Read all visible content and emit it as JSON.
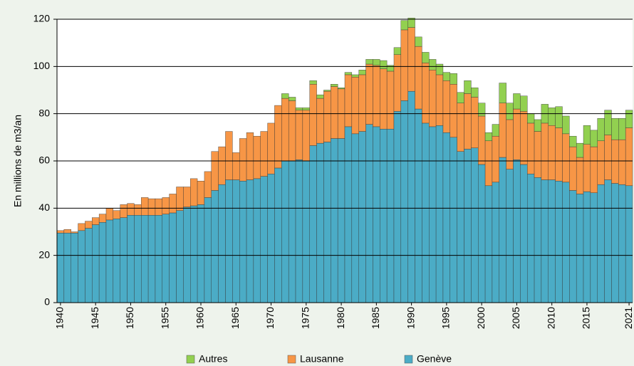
{
  "chart_data": {
    "type": "stacked_bar",
    "y_label": "En millions de m3/an",
    "categories": [
      "1940",
      null,
      null,
      null,
      null,
      "1945",
      null,
      null,
      null,
      null,
      "1950",
      null,
      null,
      null,
      null,
      "1955",
      null,
      null,
      null,
      null,
      "1960",
      null,
      null,
      null,
      null,
      "1965",
      null,
      null,
      null,
      null,
      "1970",
      null,
      null,
      null,
      null,
      "1975",
      null,
      null,
      null,
      null,
      "1980",
      null,
      null,
      null,
      null,
      "1985",
      null,
      null,
      null,
      null,
      "1990",
      null,
      null,
      null,
      null,
      "1995",
      null,
      null,
      null,
      null,
      "2000",
      null,
      null,
      null,
      null,
      "2005",
      null,
      null,
      null,
      null,
      "2010",
      null,
      null,
      null,
      null,
      "2015",
      null,
      null,
      null,
      null,
      null,
      "2021"
    ],
    "series": [
      {
        "name": "Genève",
        "color": "#4bacc6",
        "values": [
          29.5,
          29.5,
          29.5,
          30.5,
          31.5,
          33,
          34,
          35,
          35.5,
          36,
          37,
          37,
          37,
          37,
          37,
          37.5,
          38,
          39,
          40.5,
          41,
          41.5,
          44.5,
          47.5,
          50,
          52,
          52,
          51.5,
          52,
          52.5,
          53.5,
          54.5,
          57,
          60,
          60,
          60.5,
          60,
          66.5,
          67.5,
          68,
          69.5,
          69.5,
          74.5,
          71.5,
          72.5,
          75.5,
          74.5,
          73.5,
          73.5,
          81,
          85.5,
          89.5,
          82,
          76,
          74.5,
          75,
          72,
          70,
          64,
          65,
          65.5,
          58.5,
          49.5,
          51,
          61.5,
          56.5,
          60.5,
          58.5,
          54.5,
          53,
          52,
          52,
          51.5,
          51,
          47.5,
          46,
          47,
          46.5,
          50,
          52,
          50.5,
          50,
          49.5
        ]
      },
      {
        "name": "Lausanne",
        "color": "#f79646",
        "values": [
          1,
          1.5,
          0.5,
          3,
          3,
          3,
          3.5,
          5,
          3.5,
          5.5,
          5,
          4.5,
          7.5,
          7,
          7,
          7,
          8,
          10,
          8.5,
          11.5,
          10,
          11,
          16.5,
          16,
          20.5,
          11.5,
          18,
          20,
          18,
          19,
          21.5,
          26.5,
          26.5,
          25.5,
          21,
          21.5,
          26,
          19,
          21.5,
          22,
          21,
          22,
          24,
          24,
          25.5,
          26,
          25.5,
          24.5,
          24,
          30,
          27,
          26.5,
          25.5,
          24,
          21.5,
          22,
          22.5,
          20.5,
          23.5,
          21.5,
          20.5,
          19,
          19.5,
          23,
          21,
          21.5,
          22.5,
          21.5,
          19.5,
          24,
          23,
          22.5,
          20.5,
          18.5,
          15.5,
          20,
          19.5,
          18.5,
          19,
          18.5,
          19,
          24.5
        ]
      },
      {
        "name": "Autres",
        "color": "#92d050",
        "values": [
          0,
          0,
          0,
          0,
          0,
          0,
          0,
          0,
          0,
          0,
          0,
          0,
          0,
          0,
          0,
          0,
          0,
          0,
          0,
          0,
          0,
          0,
          0,
          0,
          0,
          0,
          0,
          0,
          0,
          0,
          0,
          0,
          2,
          1.5,
          1,
          1,
          1.5,
          1.5,
          0.5,
          1,
          0.5,
          1,
          1,
          2,
          2,
          2.5,
          3.5,
          2.5,
          3,
          4,
          4,
          4,
          4.5,
          4.5,
          4.5,
          3.5,
          4.5,
          4.5,
          5.5,
          4,
          5.5,
          3.5,
          5,
          8.5,
          7,
          6.5,
          6.5,
          4,
          5,
          8,
          7.5,
          9,
          7.5,
          4.5,
          6,
          8,
          7,
          9.5,
          10.5,
          9,
          9,
          7.5
        ]
      }
    ],
    "ylim": [
      0,
      120
    ],
    "yticks": [
      0,
      20,
      40,
      60,
      80,
      100,
      120
    ],
    "grid": true
  }
}
